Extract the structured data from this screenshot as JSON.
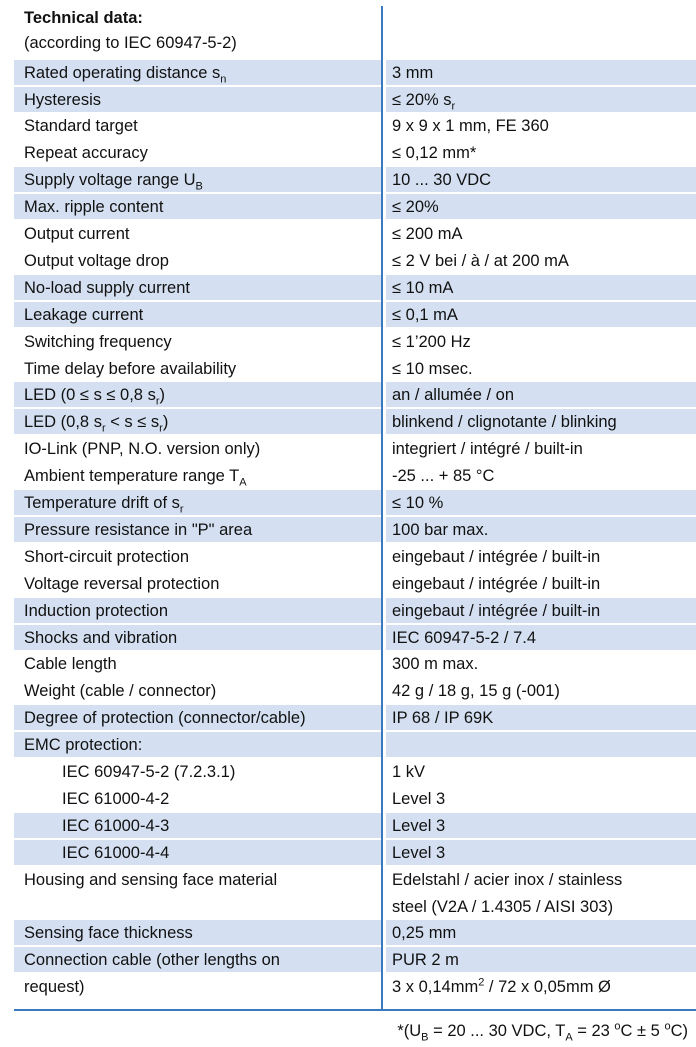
{
  "title": "Technical data:",
  "subtitle": "(according to IEC 60947-5-2)",
  "rows": [
    {
      "label": [
        "Rated operating distance s",
        {
          "sub": "n"
        }
      ],
      "value": "3 mm"
    },
    {
      "label": "Hysteresis",
      "value": [
        "≤ 20% s",
        {
          "sub": "r"
        }
      ]
    },
    {
      "label": "Standard target",
      "value": "9 x 9 x 1 mm, FE 360"
    },
    {
      "label": "Repeat accuracy",
      "value": "≤ 0,12 mm*"
    },
    {
      "label": [
        "Supply voltage range U",
        {
          "sub": "B"
        }
      ],
      "value": "10 ... 30 VDC"
    },
    {
      "label": "Max. ripple content",
      "value": "≤ 20%"
    },
    {
      "label": "Output current",
      "value": "≤ 200 mA"
    },
    {
      "label": "Output voltage drop",
      "value": "≤ 2 V bei / à / at 200 mA"
    },
    {
      "label": "No-load supply current",
      "value": "≤ 10 mA"
    },
    {
      "label": "Leakage current",
      "value": "≤ 0,1 mA"
    },
    {
      "label": "Switching frequency",
      "value": "≤ 1’200 Hz"
    },
    {
      "label": "Time delay before availability",
      "value": "≤ 10 msec."
    },
    {
      "label": [
        "LED (0 ≤ s ≤ 0,8 s",
        {
          "sub": "r"
        },
        ")"
      ],
      "value": "an / allumée / on"
    },
    {
      "label": [
        "LED (0,8 s",
        {
          "sub": "r"
        },
        " < s ≤ s",
        {
          "sub": "r"
        },
        ")"
      ],
      "value": "blinkend / clignotante / blinking"
    },
    {
      "label": "IO-Link (PNP, N.O. version only)",
      "value": "integriert / intégré / built-in"
    },
    {
      "label": [
        "Ambient temperature range T",
        {
          "sub": "A"
        }
      ],
      "value": "-25 ... + 85 °C"
    },
    {
      "label": [
        "Temperature drift of s",
        {
          "sub": "r"
        }
      ],
      "value": "≤ 10 %"
    },
    {
      "label": "Pressure resistance in \"P\" area",
      "value": "100 bar max."
    },
    {
      "label": "Short-circuit protection",
      "value": "eingebaut / intégrée / built-in"
    },
    {
      "label": "Voltage reversal protection",
      "value": "eingebaut / intégrée / built-in"
    },
    {
      "label": "Induction protection",
      "value": "eingebaut / intégrée / built-in"
    },
    {
      "label": "Shocks and vibration",
      "value": "IEC 60947-5-2 / 7.4"
    },
    {
      "label": "Cable length",
      "value": "300 m max."
    },
    {
      "label": "Weight (cable / connector)",
      "value": "42 g / 18 g, 15 g (-001)"
    },
    {
      "label": "Degree of protection (connector/cable)",
      "value": "IP 68 / IP 69K"
    },
    {
      "label": "EMC protection:"
    },
    {
      "label": "IEC 60947-5-2 (7.2.3.1)",
      "value": "1 kV"
    },
    {
      "label": "IEC 61000-4-2",
      "value": "Level 3"
    },
    {
      "label": "IEC 61000-4-3",
      "value": "Level 3"
    },
    {
      "label": "IEC 61000-4-4",
      "value": "Level 3"
    },
    {
      "label": "Housing and sensing face material",
      "value": "Edelstahl / acier inox / stainless"
    },
    {
      "value": "steel (V2A / 1.4305 / AISI 303)"
    },
    {
      "label": "Sensing face thickness",
      "value": "0,25 mm"
    },
    {
      "label": "Connection cable (other lengths on",
      "value": "PUR 2 m"
    },
    {
      "label": "request)",
      "value": [
        "3 x 0,14mm",
        {
          "sup": "2"
        },
        " / 72 x 0,05mm Ø"
      ]
    }
  ],
  "footnote": [
    "*(U",
    {
      "sub": "B"
    },
    " = 20 ... 30 VDC, T",
    {
      "sub": "A"
    },
    " = 23 ",
    {
      "sup": "o"
    },
    "C ± 5 ",
    {
      "sup": "o"
    },
    "C)"
  ]
}
